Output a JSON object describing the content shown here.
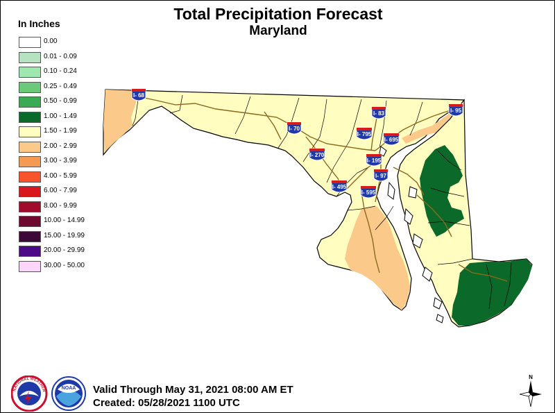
{
  "title": "Total Precipitation Forecast",
  "subtitle": "Maryland",
  "legend": {
    "units": "In Inches",
    "items": [
      {
        "label": "0.00",
        "color": "#ffffff"
      },
      {
        "label": "0.01 - 0.09",
        "color": "#b5e3c1"
      },
      {
        "label": "0.10 - 0.24",
        "color": "#9ee8b0"
      },
      {
        "label": "0.25 - 0.49",
        "color": "#6cc87a"
      },
      {
        "label": "0.50 - 0.99",
        "color": "#3aaa55"
      },
      {
        "label": "1.00 - 1.49",
        "color": "#0b6a2a"
      },
      {
        "label": "1.50 - 1.99",
        "color": "#fffdc0"
      },
      {
        "label": "2.00 - 2.99",
        "color": "#fbc98a"
      },
      {
        "label": "3.00 - 3.99",
        "color": "#f49a52"
      },
      {
        "label": "4.00 - 5.99",
        "color": "#f7542c"
      },
      {
        "label": "6.00 - 7.99",
        "color": "#d8181c"
      },
      {
        "label": "8.00 - 9.99",
        "color": "#a00c2a"
      },
      {
        "label": "10.00 - 14.99",
        "color": "#6e0a30"
      },
      {
        "label": "15.00 - 19.99",
        "color": "#3c0838"
      },
      {
        "label": "20.00 - 29.99",
        "color": "#4e0a86"
      },
      {
        "label": "30.00 - 50.00",
        "color": "#fbd6f8"
      }
    ]
  },
  "interstates": [
    {
      "label": "I- 68"
    },
    {
      "label": "I- 83"
    },
    {
      "label": "I- 95"
    },
    {
      "label": "I- 70"
    },
    {
      "label": "I- 795"
    },
    {
      "label": "I- 695"
    },
    {
      "label": "I- 270"
    },
    {
      "label": "I- 195"
    },
    {
      "label": "I- 97"
    },
    {
      "label": "I- 495"
    },
    {
      "label": "I- 595"
    }
  ],
  "footer": {
    "valid": "Valid Through May 31, 2021 08:00 AM ET",
    "created": "Created: 05/28/2021 1100 UTC",
    "nws_logo_text": "NATIONAL WEATHER SERVICE",
    "noaa_logo_text": "NOAA",
    "north_label": "N"
  },
  "colors": {
    "yellow_fill": "#fffdc0",
    "tan_fill": "#fbc98a",
    "green_fill": "#0b6a2a",
    "road_color": "#8b6a1c",
    "county_line": "#000000"
  }
}
